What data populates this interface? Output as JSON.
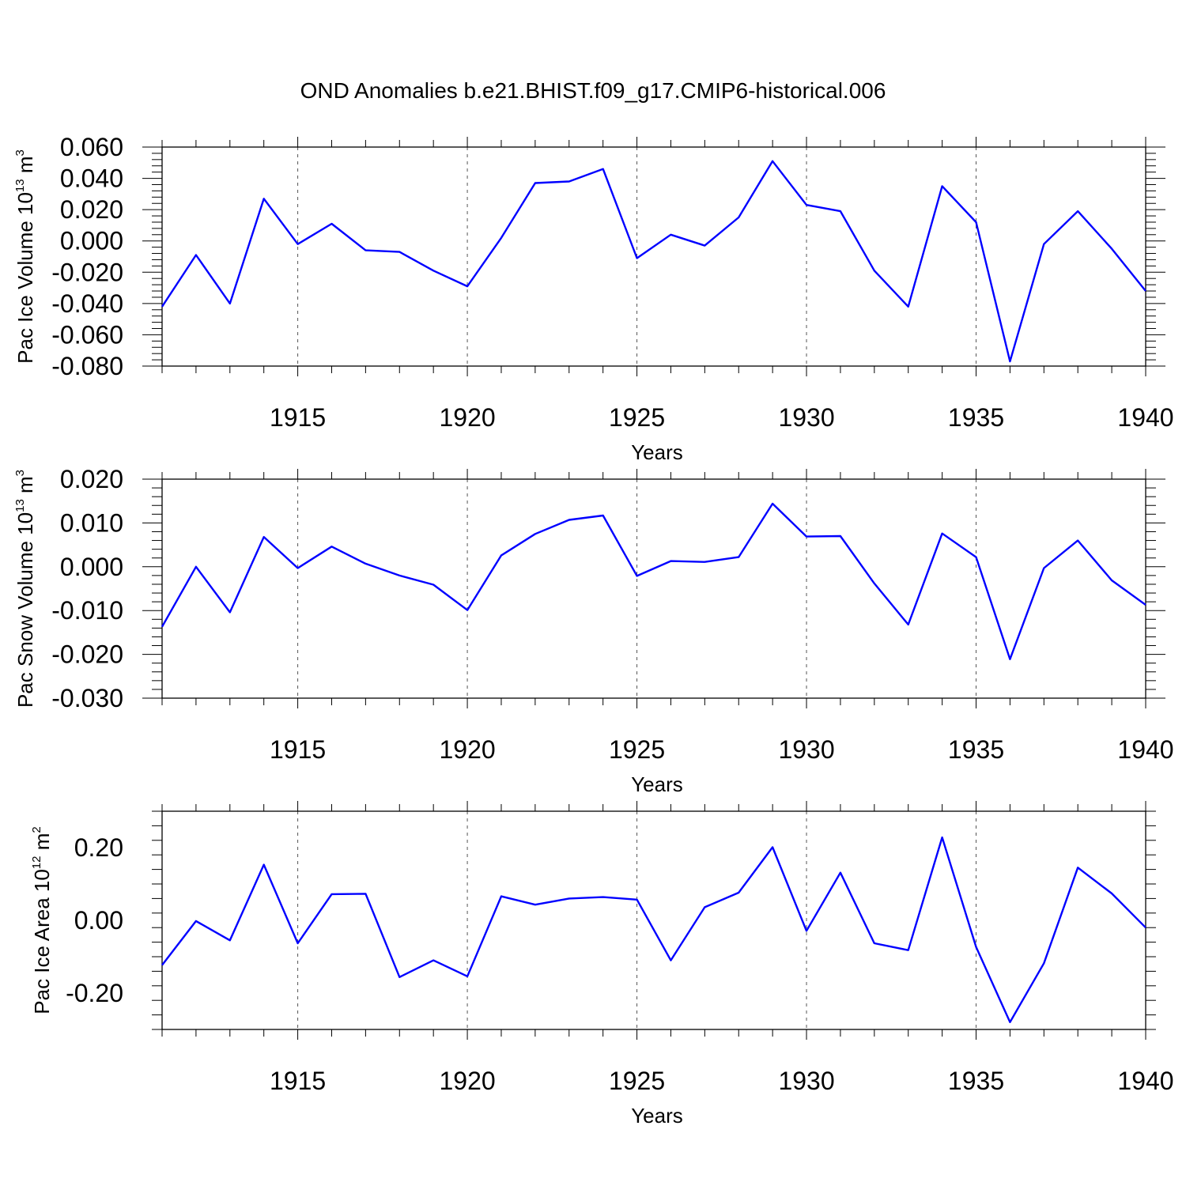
{
  "title": "OND Anomalies b.e21.BHIST.f09_g17.CMIP6-historical.006",
  "colors": {
    "series": "#0000ff",
    "axis": "#000000",
    "grid": "#555555"
  },
  "chart_data": [
    {
      "type": "line",
      "ylabel": {
        "text": "Pac Ice Volume 10",
        "exp": "13",
        "unit": " m",
        "unit_exp": "3"
      },
      "xlabel": "Years",
      "xlim": [
        1911,
        1940
      ],
      "ylim": [
        -0.08,
        0.06
      ],
      "xticks": [
        1915,
        1920,
        1925,
        1930,
        1935,
        1940
      ],
      "xtick_labels": [
        "1915",
        "1920",
        "1925",
        "1930",
        "1935",
        "1940"
      ],
      "yticks": [
        -0.08,
        -0.06,
        -0.04,
        -0.02,
        0.0,
        0.02,
        0.04,
        0.06
      ],
      "ytick_labels": [
        "-0.080",
        "-0.060",
        "-0.040",
        "-0.020",
        "0.000",
        "0.020",
        "0.040",
        "0.060"
      ],
      "grid": "dashed vertical at major x ticks",
      "series": [
        {
          "x": [
            1911,
            1912,
            1913,
            1914,
            1915,
            1916,
            1917,
            1918,
            1919,
            1920,
            1921,
            1922,
            1923,
            1924,
            1925,
            1926,
            1927,
            1928,
            1929,
            1930,
            1931,
            1932,
            1933,
            1934,
            1935,
            1936,
            1937,
            1938,
            1939,
            1940
          ],
          "values": [
            -0.042,
            -0.009,
            -0.04,
            0.027,
            -0.002,
            0.011,
            -0.006,
            -0.007,
            -0.019,
            -0.029,
            0.002,
            0.037,
            0.038,
            0.046,
            -0.011,
            0.004,
            -0.003,
            0.015,
            0.051,
            0.023,
            0.019,
            -0.019,
            -0.042,
            0.035,
            0.012,
            -0.077,
            -0.002,
            0.019,
            -0.005,
            -0.032
          ]
        }
      ]
    },
    {
      "type": "line",
      "ylabel": {
        "text": "Pac Snow Volume 10",
        "exp": "13",
        "unit": " m",
        "unit_exp": "3"
      },
      "xlabel": "Years",
      "xlim": [
        1911,
        1940
      ],
      "ylim": [
        -0.03,
        0.02
      ],
      "xticks": [
        1915,
        1920,
        1925,
        1930,
        1935,
        1940
      ],
      "xtick_labels": [
        "1915",
        "1920",
        "1925",
        "1930",
        "1935",
        "1940"
      ],
      "yticks": [
        -0.03,
        -0.02,
        -0.01,
        0.0,
        0.01,
        0.02
      ],
      "ytick_labels": [
        "-0.030",
        "-0.020",
        "-0.010",
        "0.000",
        "0.010",
        "0.020"
      ],
      "grid": "dashed vertical at major x ticks",
      "series": [
        {
          "x": [
            1911,
            1912,
            1913,
            1914,
            1915,
            1916,
            1917,
            1918,
            1919,
            1920,
            1921,
            1922,
            1923,
            1924,
            1925,
            1926,
            1927,
            1928,
            1929,
            1930,
            1931,
            1932,
            1933,
            1934,
            1935,
            1936,
            1937,
            1938,
            1939,
            1940
          ],
          "values": [
            -0.0137,
            0.0,
            -0.0104,
            0.0068,
            -0.0003,
            0.0046,
            0.0007,
            -0.002,
            -0.0041,
            -0.0099,
            0.0026,
            0.0075,
            0.0107,
            0.0117,
            -0.0021,
            0.0013,
            0.0011,
            0.0022,
            0.0144,
            0.0069,
            0.007,
            -0.0038,
            -0.0132,
            0.0076,
            0.0022,
            -0.0211,
            -0.0003,
            0.006,
            -0.0031,
            -0.0087
          ]
        }
      ]
    },
    {
      "type": "line",
      "ylabel": {
        "text": "Pac Ice Area 10",
        "exp": "12",
        "unit": " m",
        "unit_exp": "2"
      },
      "xlabel": "Years",
      "xlim": [
        1911,
        1940
      ],
      "ylim": [
        -0.3,
        0.3
      ],
      "xticks": [
        1915,
        1920,
        1925,
        1930,
        1935,
        1940
      ],
      "xtick_labels": [
        "1915",
        "1920",
        "1925",
        "1930",
        "1935",
        "1940"
      ],
      "yticks": [
        -0.2,
        0.0,
        0.2
      ],
      "ytick_labels": [
        "-0.20",
        "0.00",
        "0.20"
      ],
      "grid": "dashed vertical at major x ticks",
      "series": [
        {
          "x": [
            1911,
            1912,
            1913,
            1914,
            1915,
            1916,
            1917,
            1918,
            1919,
            1920,
            1921,
            1922,
            1923,
            1924,
            1925,
            1926,
            1927,
            1928,
            1929,
            1930,
            1931,
            1932,
            1933,
            1934,
            1935,
            1936,
            1937,
            1938,
            1939,
            1940
          ],
          "values": [
            -0.123,
            -0.002,
            -0.055,
            0.153,
            -0.063,
            0.072,
            0.073,
            -0.156,
            -0.11,
            -0.154,
            0.066,
            0.043,
            0.06,
            0.064,
            0.057,
            -0.11,
            0.036,
            0.076,
            0.201,
            -0.029,
            0.131,
            -0.063,
            -0.082,
            0.228,
            -0.073,
            -0.28,
            -0.118,
            0.145,
            0.074,
            -0.02
          ]
        }
      ]
    }
  ]
}
